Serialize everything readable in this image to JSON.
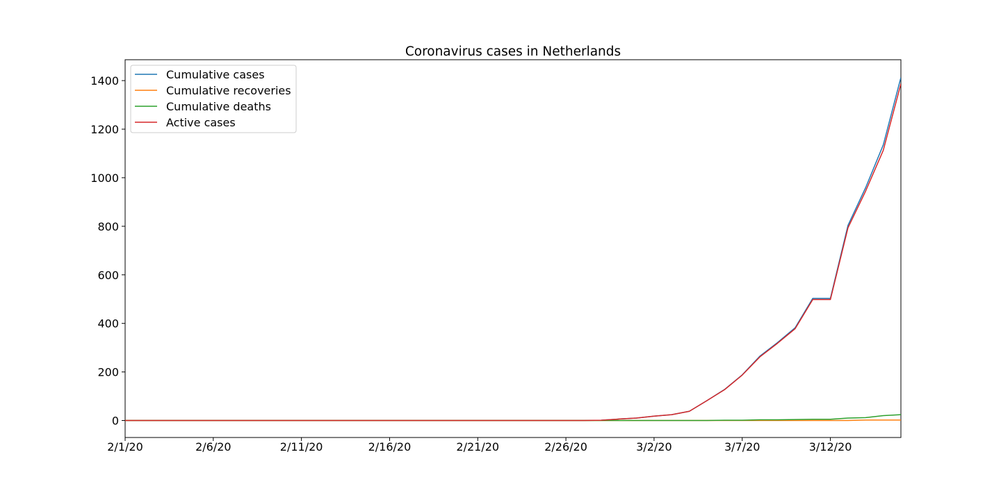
{
  "chart_data": {
    "type": "line",
    "title": "Coronavirus cases in Netherlands",
    "xlabel": "",
    "ylabel": "",
    "x": [
      "2/1/20",
      "2/2/20",
      "2/3/20",
      "2/4/20",
      "2/5/20",
      "2/6/20",
      "2/7/20",
      "2/8/20",
      "2/9/20",
      "2/10/20",
      "2/11/20",
      "2/12/20",
      "2/13/20",
      "2/14/20",
      "2/15/20",
      "2/16/20",
      "2/17/20",
      "2/18/20",
      "2/19/20",
      "2/20/20",
      "2/21/20",
      "2/22/20",
      "2/23/20",
      "2/24/20",
      "2/25/20",
      "2/26/20",
      "2/27/20",
      "2/28/20",
      "2/29/20",
      "3/1/20",
      "3/2/20",
      "3/3/20",
      "3/4/20",
      "3/5/20",
      "3/6/20",
      "3/7/20",
      "3/8/20",
      "3/9/20",
      "3/10/20",
      "3/11/20",
      "3/12/20",
      "3/13/20",
      "3/14/20",
      "3/15/20",
      "3/16/20"
    ],
    "x_ticks": [
      "2/1/20",
      "2/6/20",
      "2/11/20",
      "2/16/20",
      "2/21/20",
      "2/26/20",
      "3/2/20",
      "3/7/20",
      "3/12/20"
    ],
    "y_ticks": [
      0,
      200,
      400,
      600,
      800,
      1000,
      1200,
      1400
    ],
    "ylim": [
      -70,
      1486
    ],
    "legend_position": "upper-left",
    "series": [
      {
        "name": "Cumulative cases",
        "color": "#1f77b4",
        "values": [
          0,
          0,
          0,
          0,
          0,
          0,
          0,
          0,
          0,
          0,
          0,
          0,
          0,
          0,
          0,
          0,
          0,
          0,
          0,
          0,
          0,
          0,
          0,
          0,
          0,
          0,
          0,
          1,
          6,
          10,
          18,
          24,
          38,
          82,
          128,
          188,
          265,
          321,
          382,
          503,
          503,
          804,
          959,
          1135,
          1413
        ]
      },
      {
        "name": "Cumulative recoveries",
        "color": "#ff7f0e",
        "values": [
          0,
          0,
          0,
          0,
          0,
          0,
          0,
          0,
          0,
          0,
          0,
          0,
          0,
          0,
          0,
          0,
          0,
          0,
          0,
          0,
          0,
          0,
          0,
          0,
          0,
          0,
          0,
          0,
          0,
          0,
          0,
          0,
          0,
          0,
          0,
          0,
          0,
          0,
          0,
          0,
          0,
          0,
          2,
          2,
          2
        ]
      },
      {
        "name": "Cumulative deaths",
        "color": "#2ca02c",
        "values": [
          0,
          0,
          0,
          0,
          0,
          0,
          0,
          0,
          0,
          0,
          0,
          0,
          0,
          0,
          0,
          0,
          0,
          0,
          0,
          0,
          0,
          0,
          0,
          0,
          0,
          0,
          0,
          0,
          0,
          0,
          0,
          0,
          0,
          0,
          1,
          1,
          3,
          3,
          4,
          5,
          5,
          10,
          12,
          20,
          24
        ]
      },
      {
        "name": "Active cases",
        "color": "#d62728",
        "values": [
          0,
          0,
          0,
          0,
          0,
          0,
          0,
          0,
          0,
          0,
          0,
          0,
          0,
          0,
          0,
          0,
          0,
          0,
          0,
          0,
          0,
          0,
          0,
          0,
          0,
          0,
          0,
          1,
          6,
          10,
          18,
          24,
          38,
          82,
          127,
          187,
          262,
          318,
          378,
          498,
          498,
          794,
          945,
          1113,
          1387
        ]
      }
    ]
  }
}
